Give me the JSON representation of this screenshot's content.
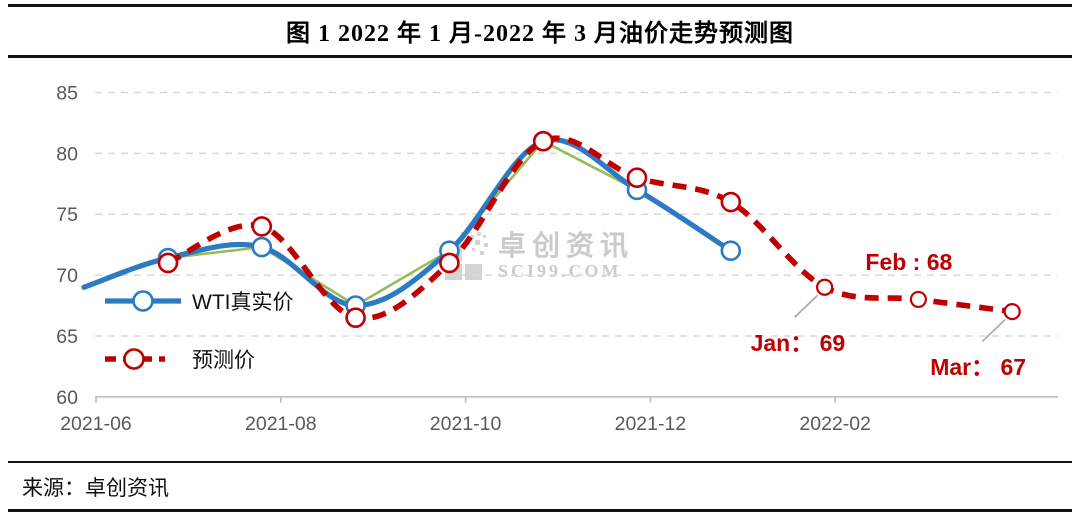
{
  "title": "图 1 2022 年 1 月-2022 年 3 月油价走势预测图",
  "source_label": "来源：卓创资讯",
  "watermark": {
    "line1": "卓创资讯",
    "line2": "SCI99.COM"
  },
  "colors": {
    "actual": "#2B7BC2",
    "forecast": "#C00000",
    "helper": "#9BBB59",
    "axis_text": "#595959",
    "gridline": "#D9D9D9",
    "axis_line": "#BFBFBF",
    "annotation": "#C00000",
    "leader_line": "#A6A6A6",
    "watermark": "#CBCBCB"
  },
  "legend": {
    "items": [
      {
        "label": "WTI真实价",
        "series": "actual"
      },
      {
        "label": "预测价",
        "series": "forecast"
      }
    ]
  },
  "chart_data": {
    "type": "line",
    "categories": [
      "2021-06",
      "2021-07",
      "2021-08",
      "2021-09",
      "2021-10",
      "2021-11",
      "2021-12",
      "2022-01",
      "2022-02",
      "2022-03"
    ],
    "series": [
      {
        "name": "WTI真实价",
        "key": "actual",
        "line": "smooth-solid",
        "marker": "open-circle",
        "edge_start_value": 69,
        "values": [
          71.4,
          72.3,
          67.5,
          72,
          81,
          77,
          72,
          null,
          null,
          null
        ]
      },
      {
        "name": "预测价",
        "key": "forecast",
        "line": "smooth-dashed",
        "marker": "open-circle",
        "values": [
          71,
          74,
          66.5,
          71,
          81,
          78,
          76,
          69,
          68,
          67
        ]
      },
      {
        "name": "真实价连线(细绿线)",
        "key": "helper",
        "line": "straight-solid",
        "marker": "none",
        "in_legend": false,
        "values": [
          71.4,
          72.3,
          67.5,
          72,
          81,
          77,
          72,
          null,
          null,
          null
        ]
      }
    ],
    "ylim": [
      60,
      85
    ],
    "yticks": [
      60,
      65,
      70,
      75,
      80,
      85
    ],
    "xtick_labels": [
      "2021-06",
      "2021-08",
      "2021-10",
      "2021-12",
      "2022-02"
    ],
    "grid": "horizontal-dashed",
    "legend_position": "inside-left",
    "annotations": [
      {
        "text": "Jan： 69",
        "series": "forecast",
        "category": "2022-01",
        "value": 69,
        "leader_line": true
      },
      {
        "text": "Feb : 68",
        "series": "forecast",
        "category": "2022-02",
        "value": 68,
        "leader_line": false
      },
      {
        "text": "Mar： 67",
        "series": "forecast",
        "category": "2022-03",
        "value": 67,
        "leader_line": true
      }
    ]
  }
}
